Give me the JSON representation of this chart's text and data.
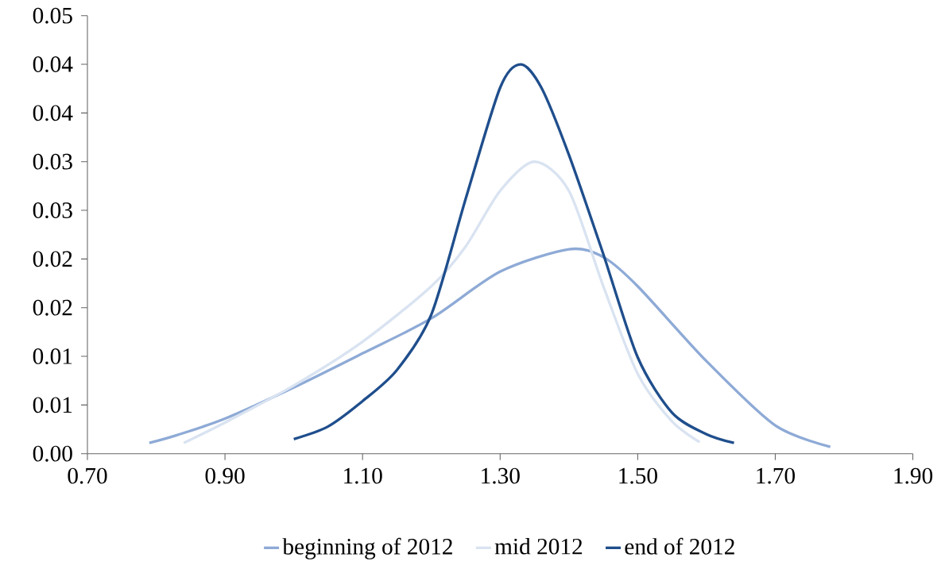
{
  "chart_data": {
    "type": "line",
    "xlim": [
      0.7,
      1.9
    ],
    "xticks": [
      {
        "value": 0.7,
        "label": "0.70"
      },
      {
        "value": 0.9,
        "label": "0.90"
      },
      {
        "value": 1.1,
        "label": "1.10"
      },
      {
        "value": 1.3,
        "label": "1.30"
      },
      {
        "value": 1.5,
        "label": "1.50"
      },
      {
        "value": 1.7,
        "label": "1.70"
      },
      {
        "value": 1.9,
        "label": "1.90"
      }
    ],
    "ylim": [
      0,
      0.045
    ],
    "yticks": [
      {
        "value": 0,
        "label": "0.00"
      },
      {
        "value": 0.005,
        "label": "0.01"
      },
      {
        "value": 0.01,
        "label": "0.01"
      },
      {
        "value": 0.015,
        "label": "0.02"
      },
      {
        "value": 0.02,
        "label": "0.02"
      },
      {
        "value": 0.025,
        "label": "0.03"
      },
      {
        "value": 0.03,
        "label": "0.03"
      },
      {
        "value": 0.035,
        "label": "0.04"
      },
      {
        "value": 0.04,
        "label": "0.04"
      },
      {
        "value": 0.045,
        "label": "0.05"
      }
    ],
    "grid": false,
    "legend": "bottom",
    "marker": "none",
    "line_style": "solid",
    "series": [
      {
        "name": "beginning of 2012",
        "color": "#8eaad6",
        "x": [
          0.79,
          0.83,
          0.9,
          1.0,
          1.1,
          1.2,
          1.3,
          1.4,
          1.45,
          1.5,
          1.6,
          1.7,
          1.78
        ],
        "values": [
          0.0011,
          0.0019,
          0.0036,
          0.0068,
          0.0103,
          0.0139,
          0.0187,
          0.021,
          0.0202,
          0.0172,
          0.0095,
          0.0029,
          0.0007
        ]
      },
      {
        "name": "mid 2012",
        "color": "#d9e3f1",
        "x": [
          0.84,
          0.9,
          1.0,
          1.1,
          1.2,
          1.25,
          1.3,
          1.35,
          1.4,
          1.45,
          1.5,
          1.55,
          1.59
        ],
        "values": [
          0.0011,
          0.0032,
          0.007,
          0.0115,
          0.0172,
          0.0213,
          0.027,
          0.03,
          0.027,
          0.0172,
          0.0082,
          0.0033,
          0.0012
        ]
      },
      {
        "name": "end of 2012",
        "color": "#1f4e8c",
        "x": [
          1.0,
          1.05,
          1.1,
          1.15,
          1.2,
          1.25,
          1.3,
          1.33,
          1.36,
          1.4,
          1.45,
          1.5,
          1.55,
          1.6,
          1.64
        ],
        "values": [
          0.0015,
          0.0028,
          0.0054,
          0.0086,
          0.0143,
          0.0262,
          0.0376,
          0.04,
          0.0376,
          0.0307,
          0.0205,
          0.0099,
          0.0042,
          0.002,
          0.0011
        ]
      }
    ]
  }
}
